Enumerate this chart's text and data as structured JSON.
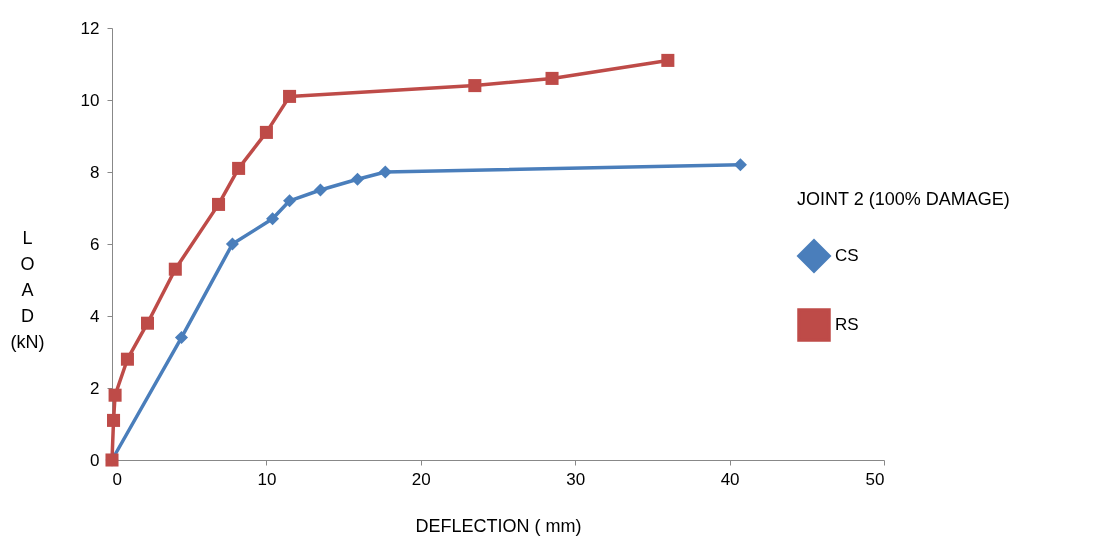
{
  "chart_data": {
    "type": "line",
    "xlabel": "DEFLECTION ( mm)",
    "ylabel": "LOAD (kN)",
    "legend_title": "JOINT 2 (100% DAMAGE)",
    "legend": "right",
    "grid": false,
    "xlim": [
      0,
      50
    ],
    "xticks": [
      0,
      10,
      20,
      30,
      40,
      50
    ],
    "ylim": [
      0,
      12
    ],
    "yticks": [
      0,
      2,
      4,
      6,
      8,
      10,
      12
    ],
    "series": [
      {
        "name": "CS",
        "color": "#4a7ebb",
        "marker": "diamond",
        "x": [
          0,
          4.5,
          7.8,
          10.4,
          11.5,
          13.5,
          15.9,
          17.7,
          40.7
        ],
        "values": [
          0,
          3.4,
          6.0,
          6.7,
          7.2,
          7.5,
          7.8,
          8.0,
          8.2
        ]
      },
      {
        "name": "RS",
        "color": "#be4b48",
        "marker": "square",
        "x": [
          0,
          0.1,
          0.2,
          1.0,
          2.3,
          4.1,
          6.9,
          8.2,
          10.0,
          11.5,
          23.5,
          28.5,
          36.0
        ],
        "values": [
          0,
          1.1,
          1.8,
          2.8,
          3.8,
          5.3,
          7.1,
          8.1,
          9.1,
          10.1,
          10.4,
          10.6,
          11.1
        ]
      }
    ]
  }
}
